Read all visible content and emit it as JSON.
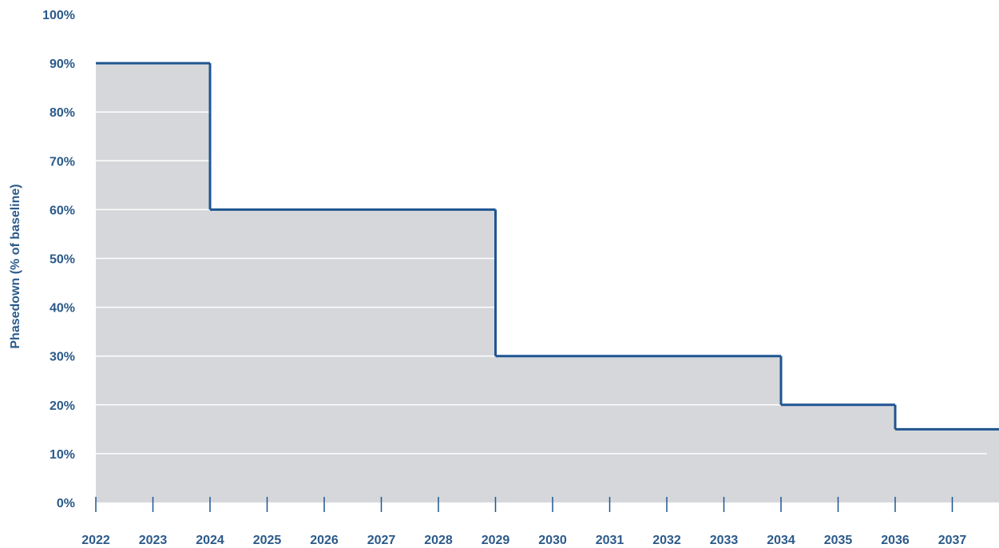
{
  "chart_data": {
    "type": "area",
    "title": "",
    "xlabel": "",
    "ylabel": "Phasedown (% of baseline)",
    "x_ticks": [
      "2022",
      "2023",
      "2024",
      "2025",
      "2026",
      "2027",
      "2028",
      "2029",
      "2030",
      "2031",
      "2032",
      "2033",
      "2034",
      "2035",
      "2036",
      "2037"
    ],
    "y_ticks": [
      "0%",
      "10%",
      "20%",
      "30%",
      "40%",
      "50%",
      "60%",
      "70%",
      "80%",
      "90%",
      "100%"
    ],
    "xlim": [
      2022,
      2038
    ],
    "ylim": [
      0,
      100
    ],
    "grid": true,
    "steps": [
      {
        "from": 2022,
        "to": 2024,
        "value": 90
      },
      {
        "from": 2024,
        "to": 2029,
        "value": 60
      },
      {
        "from": 2029,
        "to": 2034,
        "value": 30
      },
      {
        "from": 2034,
        "to": 2036,
        "value": 20
      },
      {
        "from": 2036,
        "to": 2038,
        "value": 15
      }
    ],
    "continues_beyond": true,
    "colors": {
      "fill": "#d6d7da",
      "line": "#1f5592",
      "text": "#2b5a8a",
      "grid": "#ffffff"
    }
  }
}
